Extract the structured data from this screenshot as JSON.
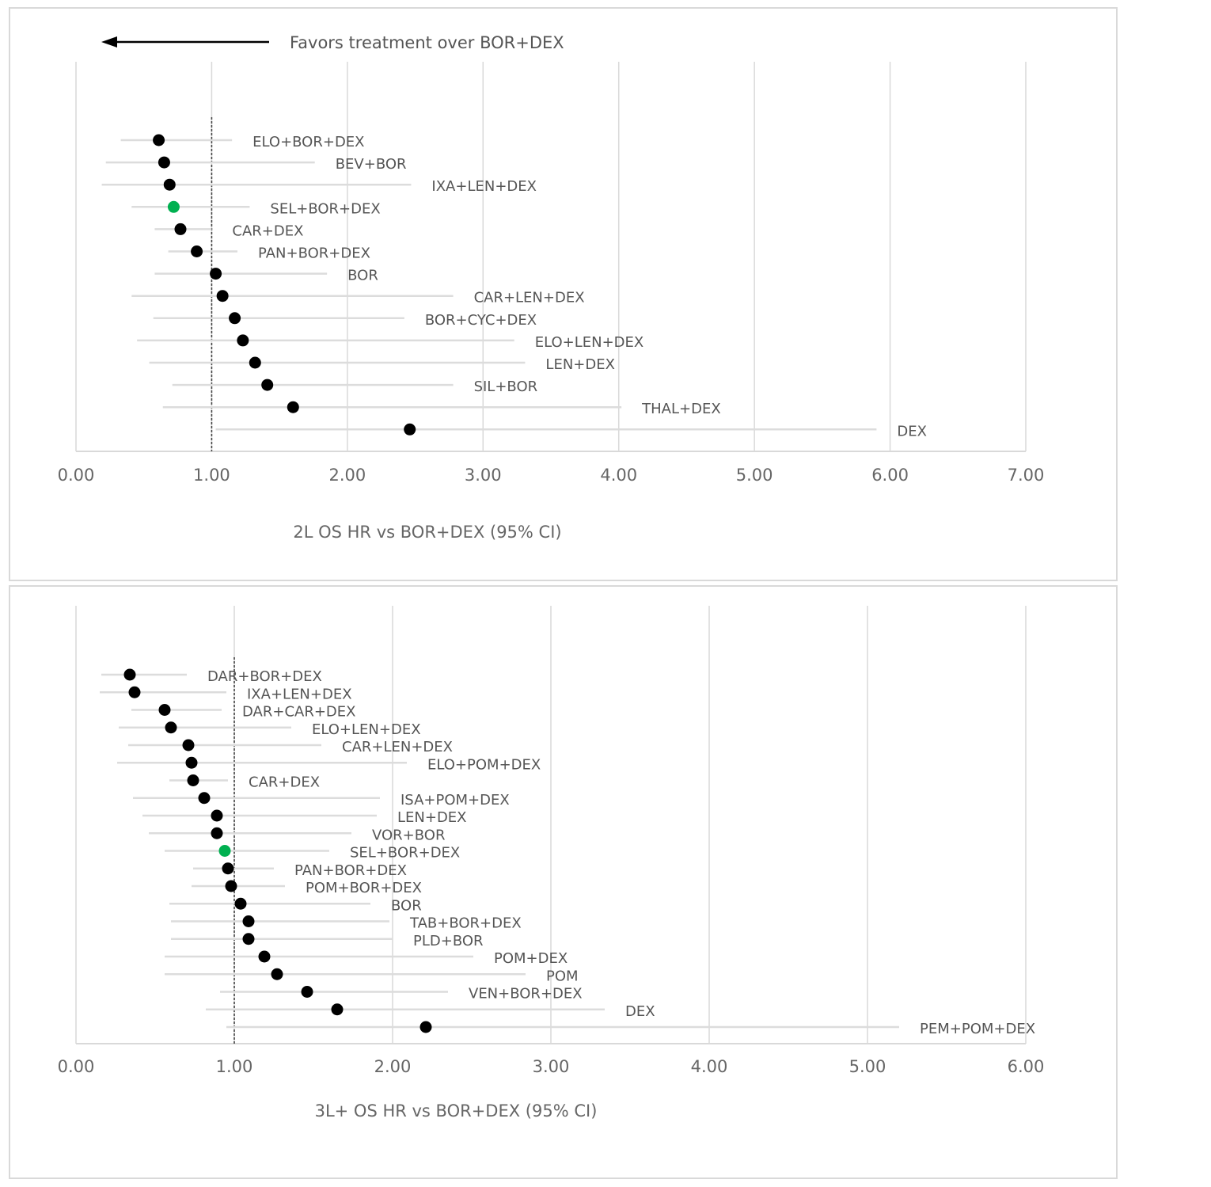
{
  "chart_data": [
    {
      "type": "forest",
      "annotation": "Favors treatment over BOR+DEX",
      "xlabel": "2L OS HR vs BOR+DEX (95% CI)",
      "xlim": [
        0,
        7
      ],
      "xticks": [
        "0.00",
        "1.00",
        "2.00",
        "3.00",
        "4.00",
        "5.00",
        "6.00",
        "7.00"
      ],
      "reference_line": 1.0,
      "grid": "vertical",
      "highlight_color": "#00b050",
      "point_color": "#000000",
      "rows": [
        {
          "label": "ELO+BOR+DEX",
          "hr": 0.61,
          "lo": 0.33,
          "hi": 1.15
        },
        {
          "label": "BEV+BOR",
          "hr": 0.65,
          "lo": 0.22,
          "hi": 1.76
        },
        {
          "label": "IXA+LEN+DEX",
          "hr": 0.69,
          "lo": 0.19,
          "hi": 2.47
        },
        {
          "label": "SEL+BOR+DEX",
          "hr": 0.72,
          "lo": 0.41,
          "hi": 1.28,
          "highlight": true
        },
        {
          "label": "CAR+DEX",
          "hr": 0.77,
          "lo": 0.58,
          "hi": 1.0
        },
        {
          "label": "PAN+BOR+DEX",
          "hr": 0.89,
          "lo": 0.68,
          "hi": 1.19
        },
        {
          "label": "BOR",
          "hr": 1.03,
          "lo": 0.58,
          "hi": 1.85
        },
        {
          "label": "CAR+LEN+DEX",
          "hr": 1.08,
          "lo": 0.41,
          "hi": 2.78
        },
        {
          "label": "BOR+CYC+DEX",
          "hr": 1.17,
          "lo": 0.57,
          "hi": 2.42
        },
        {
          "label": "ELO+LEN+DEX",
          "hr": 1.23,
          "lo": 0.45,
          "hi": 3.23
        },
        {
          "label": "LEN+DEX",
          "hr": 1.32,
          "lo": 0.54,
          "hi": 3.31
        },
        {
          "label": "SIL+BOR",
          "hr": 1.41,
          "lo": 0.71,
          "hi": 2.78
        },
        {
          "label": "THAL+DEX",
          "hr": 1.6,
          "lo": 0.64,
          "hi": 4.02
        },
        {
          "label": "DEX",
          "hr": 2.46,
          "lo": 1.03,
          "hi": 5.9
        }
      ]
    },
    {
      "type": "forest",
      "xlabel": "3L+ OS HR vs BOR+DEX (95% CI)",
      "xlim": [
        0,
        6
      ],
      "xticks": [
        "0.00",
        "1.00",
        "2.00",
        "3.00",
        "4.00",
        "5.00",
        "6.00"
      ],
      "reference_line": 1.0,
      "grid": "vertical",
      "highlight_color": "#00b050",
      "point_color": "#000000",
      "rows": [
        {
          "label": "DAR+BOR+DEX",
          "hr": 0.34,
          "lo": 0.16,
          "hi": 0.7
        },
        {
          "label": "IXA+LEN+DEX",
          "hr": 0.37,
          "lo": 0.15,
          "hi": 0.95
        },
        {
          "label": "DAR+CAR+DEX",
          "hr": 0.56,
          "lo": 0.35,
          "hi": 0.92
        },
        {
          "label": "ELO+LEN+DEX",
          "hr": 0.6,
          "lo": 0.27,
          "hi": 1.36
        },
        {
          "label": "CAR+LEN+DEX",
          "hr": 0.71,
          "lo": 0.33,
          "hi": 1.55
        },
        {
          "label": "ELO+POM+DEX",
          "hr": 0.73,
          "lo": 0.26,
          "hi": 2.09
        },
        {
          "label": "CAR+DEX",
          "hr": 0.74,
          "lo": 0.59,
          "hi": 0.96
        },
        {
          "label": "ISA+POM+DEX",
          "hr": 0.81,
          "lo": 0.36,
          "hi": 1.92
        },
        {
          "label": "LEN+DEX",
          "hr": 0.89,
          "lo": 0.42,
          "hi": 1.9
        },
        {
          "label": "VOR+BOR",
          "hr": 0.89,
          "lo": 0.46,
          "hi": 1.74
        },
        {
          "label": "SEL+BOR+DEX",
          "hr": 0.94,
          "lo": 0.56,
          "hi": 1.6,
          "highlight": true
        },
        {
          "label": "PAN+BOR+DEX",
          "hr": 0.96,
          "lo": 0.74,
          "hi": 1.25
        },
        {
          "label": "POM+BOR+DEX",
          "hr": 0.98,
          "lo": 0.73,
          "hi": 1.32
        },
        {
          "label": "BOR",
          "hr": 1.04,
          "lo": 0.59,
          "hi": 1.86
        },
        {
          "label": "TAB+BOR+DEX",
          "hr": 1.09,
          "lo": 0.6,
          "hi": 1.98
        },
        {
          "label": "PLD+BOR",
          "hr": 1.09,
          "lo": 0.6,
          "hi": 2.0
        },
        {
          "label": "POM+DEX",
          "hr": 1.19,
          "lo": 0.56,
          "hi": 2.51
        },
        {
          "label": "POM",
          "hr": 1.27,
          "lo": 0.56,
          "hi": 2.84
        },
        {
          "label": "VEN+BOR+DEX",
          "hr": 1.46,
          "lo": 0.91,
          "hi": 2.35
        },
        {
          "label": "DEX",
          "hr": 1.65,
          "lo": 0.82,
          "hi": 3.34
        },
        {
          "label": "PEM+POM+DEX",
          "hr": 2.21,
          "lo": 0.95,
          "hi": 5.2
        }
      ]
    }
  ]
}
